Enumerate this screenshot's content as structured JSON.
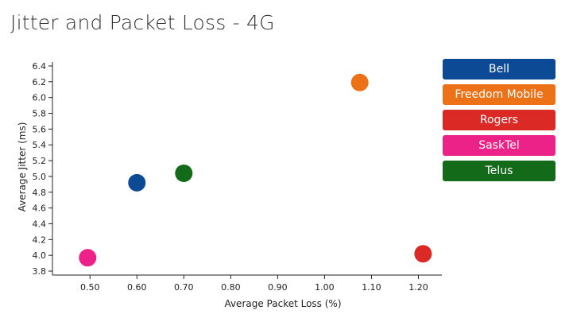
{
  "page": {
    "title": "Jitter and Packet Loss - 4G"
  },
  "chart_data": {
    "type": "scatter",
    "title": "Jitter and Packet Loss - 4G",
    "xlabel": "Average Packet Loss (%)",
    "ylabel": "Average Jitter (ms)",
    "xlim": [
      0.42,
      1.25
    ],
    "ylim": [
      3.75,
      6.45
    ],
    "x_ticks": [
      "0.50",
      "0.60",
      "0.70",
      "0.80",
      "0.90",
      "1.00",
      "1.10",
      "1.20"
    ],
    "y_ticks": [
      "3.8",
      "4.0",
      "4.2",
      "4.4",
      "4.6",
      "4.8",
      "5.0",
      "5.2",
      "5.4",
      "5.6",
      "5.8",
      "6.0",
      "6.2",
      "6.4"
    ],
    "grid": false,
    "legend_position": "right",
    "series": [
      {
        "name": "Bell",
        "color": "#0c4a96",
        "x": 0.6,
        "y": 4.92
      },
      {
        "name": "Freedom Mobile",
        "color": "#ec7117",
        "x": 1.075,
        "y": 6.19
      },
      {
        "name": "Rogers",
        "color": "#db2a26",
        "x": 1.21,
        "y": 4.02
      },
      {
        "name": "SaskTel",
        "color": "#ec2288",
        "x": 0.495,
        "y": 3.97
      },
      {
        "name": "Telus",
        "color": "#136a18",
        "x": 0.7,
        "y": 5.04
      }
    ]
  }
}
